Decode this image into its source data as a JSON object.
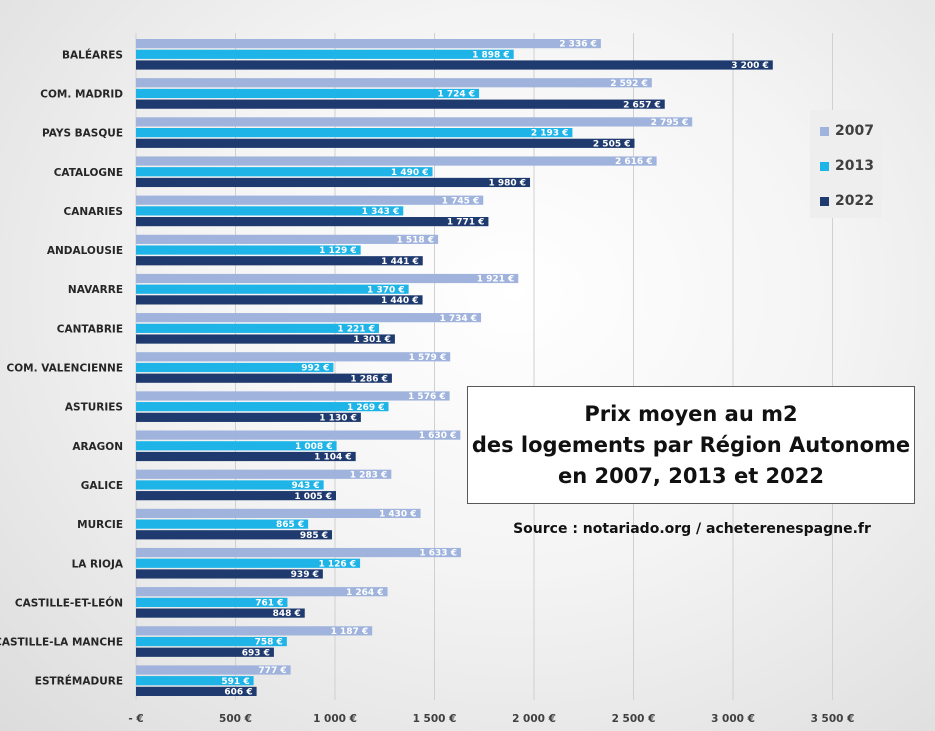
{
  "chart_data": {
    "type": "bar",
    "orientation": "horizontal",
    "categories": [
      "BALÉARES",
      "COM. MADRID",
      "PAYS BASQUE",
      "CATALOGNE",
      "CANARIES",
      "ANDALOUSIE",
      "NAVARRE",
      "CANTABRIE",
      "COM. VALENCIENNE",
      "ASTURIES",
      "ARAGON",
      "GALICE",
      "MURCIE",
      "LA RIOJA",
      "CASTILLE-ET-LEÓN",
      "CASTILLE-LA MANCHE",
      "ESTRÉMADURE"
    ],
    "series": [
      {
        "name": "2007",
        "color": "#9fb3dc",
        "values": [
          2336,
          2592,
          2795,
          2616,
          1745,
          1518,
          1921,
          1734,
          1579,
          1576,
          1630,
          1283,
          1430,
          1633,
          1264,
          1187,
          777
        ],
        "labels": [
          "2 336 €",
          "2 592 €",
          "2 795 €",
          "2 616 €",
          "1 745 €",
          "1 518 €",
          "1 921 €",
          "1 734 €",
          "1 579 €",
          "1 576 €",
          "1 630 €",
          "1 283 €",
          "1 430 €",
          "1 633 €",
          "1 264 €",
          "1 187 €",
          "777 €"
        ]
      },
      {
        "name": "2013",
        "color": "#1fb4e8",
        "values": [
          1898,
          1724,
          2193,
          1490,
          1343,
          1129,
          1370,
          1221,
          992,
          1269,
          1008,
          943,
          865,
          1126,
          761,
          758,
          591
        ],
        "labels": [
          "1 898 €",
          "1 724 €",
          "2 193 €",
          "1 490 €",
          "1 343 €",
          "1 129 €",
          "1 370 €",
          "1 221 €",
          "992 €",
          "1 269 €",
          "1 008 €",
          "943 €",
          "865 €",
          "1 126 €",
          "761 €",
          "758 €",
          "591 €"
        ]
      },
      {
        "name": "2022",
        "color": "#1f3a6e",
        "values": [
          3200,
          2657,
          2505,
          1980,
          1771,
          1441,
          1440,
          1301,
          1286,
          1130,
          1104,
          1005,
          985,
          939,
          848,
          693,
          606
        ],
        "labels": [
          "3 200 €",
          "2 657 €",
          "2 505 €",
          "1 980 €",
          "1 771 €",
          "1 441 €",
          "1 440 €",
          "1 301 €",
          "1 286 €",
          "1 130 €",
          "1 104 €",
          "1 005 €",
          "985 €",
          "939 €",
          "848 €",
          "693 €",
          "606 €"
        ]
      }
    ],
    "x_ticks": [
      0,
      500,
      1000,
      1500,
      2000,
      2500,
      3000,
      3500
    ],
    "x_tick_labels": [
      "- €",
      "500 €",
      "1 000 €",
      "1 500 €",
      "2 000 €",
      "2 500 €",
      "3 000 €",
      "3 500 €"
    ],
    "xlim": [
      0,
      3500
    ],
    "grid": "vertical",
    "legend_position": "right",
    "title_lines": [
      "Prix moyen au m2",
      "des logements par Région Autonome",
      "en 2007, 2013 et 2022"
    ],
    "source": "Source : notariado.org / acheterenespagne.fr"
  }
}
